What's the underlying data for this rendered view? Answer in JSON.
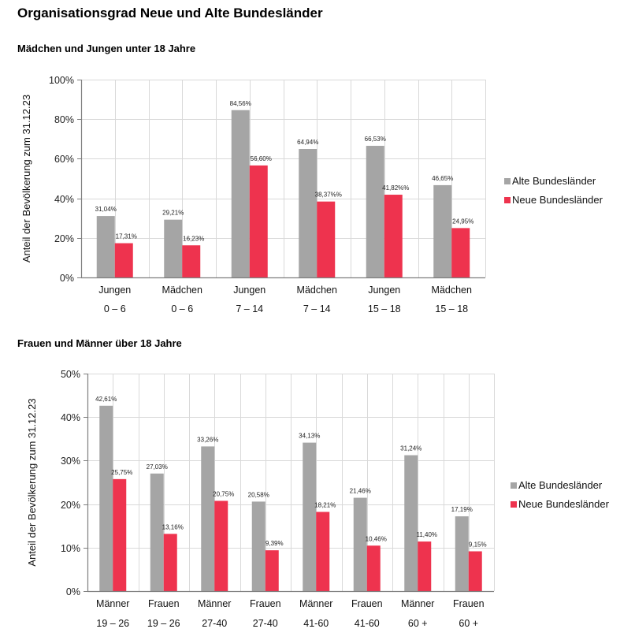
{
  "page": {
    "title": "Organisationsgrad Neue und Alte Bundesländer"
  },
  "colors": {
    "alte": "#a5a5a5",
    "neue": "#ee334e",
    "grid": "#d9d9d9",
    "axis": "#7f7f7f"
  },
  "chart_data": [
    {
      "type": "bar",
      "title": "Mädchen und Jungen unter 18 Jahre",
      "xlabel": "",
      "ylabel": "Anteil der Bevölkerung zum 31.12.23",
      "ylim": [
        0,
        100
      ],
      "yticks": [
        0,
        20,
        40,
        60,
        80,
        100
      ],
      "ytick_labels": [
        "0%",
        "20%",
        "40%",
        "60%",
        "80%",
        "100%"
      ],
      "grid": true,
      "legend_position": "right",
      "categories": [
        {
          "line1": "Jungen",
          "line2": "0 – 6"
        },
        {
          "line1": "Mädchen",
          "line2": "0 – 6"
        },
        {
          "line1": "Jungen",
          "line2": "7 – 14"
        },
        {
          "line1": "Mädchen",
          "line2": "7 – 14"
        },
        {
          "line1": "Jungen",
          "line2": "15 – 18"
        },
        {
          "line1": "Mädchen",
          "line2": "15 – 18"
        }
      ],
      "series": [
        {
          "name": "Alte Bundesländer",
          "color_key": "alte",
          "values": [
            31.04,
            29.21,
            84.56,
            64.94,
            66.53,
            46.65
          ],
          "labels": [
            "31,04%",
            "29,21%",
            "84,56%",
            "64,94%",
            "66,53%",
            "46,65%"
          ]
        },
        {
          "name": "Neue Bundesländer",
          "color_key": "neue",
          "values": [
            17.31,
            16.23,
            56.6,
            38.37,
            41.82,
            24.95
          ],
          "labels": [
            "17,31%",
            "16,23%",
            "56,60%",
            "38,37%%",
            "41,82%%",
            "24,95%"
          ]
        }
      ]
    },
    {
      "type": "bar",
      "title": "Frauen und Männer über 18 Jahre",
      "xlabel": "",
      "ylabel": "Anteil der Bevölkerung zum 31.12.23",
      "ylim": [
        0,
        50
      ],
      "yticks": [
        0,
        10,
        20,
        30,
        40,
        50
      ],
      "ytick_labels": [
        "0%",
        "10%",
        "20%",
        "30%",
        "40%",
        "50%"
      ],
      "grid": true,
      "legend_position": "right",
      "categories": [
        {
          "line1": "Männer",
          "line2": "19 – 26"
        },
        {
          "line1": "Frauen",
          "line2": "19 – 26"
        },
        {
          "line1": "Männer",
          "line2": "27-40"
        },
        {
          "line1": "Frauen",
          "line2": "27-40"
        },
        {
          "line1": "Männer",
          "line2": "41-60"
        },
        {
          "line1": "Frauen",
          "line2": "41-60"
        },
        {
          "line1": "Männer",
          "line2": "60 +"
        },
        {
          "line1": "Frauen",
          "line2": "60 +"
        }
      ],
      "series": [
        {
          "name": "Alte Bundesländer",
          "color_key": "alte",
          "values": [
            42.61,
            27.03,
            33.26,
            20.58,
            34.13,
            21.46,
            31.24,
            17.19
          ],
          "labels": [
            "42,61%",
            "27,03%",
            "33,26%",
            "20,58%",
            "34,13%",
            "21,46%",
            "31,24%",
            "17,19%"
          ]
        },
        {
          "name": "Neue Bundesländer",
          "color_key": "neue",
          "values": [
            25.75,
            13.16,
            20.75,
            9.39,
            18.21,
            10.46,
            11.4,
            9.15
          ],
          "labels": [
            "25,75%",
            "13,16%",
            "20,75%",
            "9,39%",
            "18,21%",
            "10,46%",
            "11,40%",
            "9,15%"
          ]
        }
      ]
    }
  ]
}
